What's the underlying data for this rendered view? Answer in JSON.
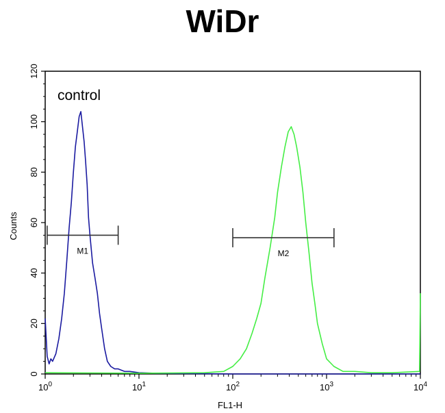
{
  "chart_data": {
    "type": "line",
    "title": "WiDr",
    "xlabel": "FL1-H",
    "ylabel": "Counts",
    "x_scale": "log",
    "xlim": [
      1,
      10000
    ],
    "ylim": [
      0,
      120
    ],
    "x_ticks": [
      {
        "value": 1,
        "base": "10",
        "exp": "0"
      },
      {
        "value": 10,
        "base": "10",
        "exp": "1"
      },
      {
        "value": 100,
        "base": "10",
        "exp": "2"
      },
      {
        "value": 1000,
        "base": "10",
        "exp": "3"
      },
      {
        "value": 10000,
        "base": "10",
        "exp": "4"
      }
    ],
    "y_ticks": [
      "0",
      "20",
      "40",
      "60",
      "80",
      "100",
      "120"
    ],
    "annotation": "control",
    "markers": [
      {
        "label": "M1",
        "x_start": 1.05,
        "x_end": 6.0,
        "y": 55
      },
      {
        "label": "M2",
        "x_start": 100,
        "x_end": 1200,
        "y": 54
      }
    ],
    "series": [
      {
        "color": "#1a1aa0",
        "x": [
          1.0,
          1.05,
          1.1,
          1.15,
          1.2,
          1.3,
          1.4,
          1.5,
          1.6,
          1.7,
          1.8,
          1.9,
          2.0,
          2.1,
          2.2,
          2.3,
          2.4,
          2.5,
          2.6,
          2.7,
          2.8,
          2.9,
          3.0,
          3.2,
          3.4,
          3.6,
          3.8,
          4.0,
          4.3,
          4.6,
          5.0,
          5.5,
          6.0,
          7.0,
          8.0,
          10.0,
          15.0,
          30.0,
          100.0,
          1000.0,
          10000.0
        ],
        "y": [
          22,
          7,
          4,
          6,
          5,
          8,
          14,
          22,
          32,
          45,
          58,
          68,
          80,
          90,
          96,
          102,
          104,
          98,
          92,
          84,
          75,
          62,
          55,
          44,
          38,
          32,
          24,
          18,
          10,
          5,
          3,
          2,
          2,
          1,
          1,
          0.5,
          0.3,
          0.2,
          0,
          0,
          0
        ]
      },
      {
        "color": "#44ee44",
        "x": [
          1.0,
          10.0,
          50.0,
          80.0,
          100.0,
          120.0,
          140.0,
          160.0,
          180.0,
          200.0,
          220.0,
          250.0,
          280.0,
          300.0,
          330.0,
          360.0,
          390.0,
          420.0,
          450.0,
          480.0,
          520.0,
          560.0,
          600.0,
          650.0,
          700.0,
          750.0,
          800.0,
          900.0,
          1000.0,
          1200.0,
          1500.0,
          2000.0,
          3000.0,
          5000.0,
          9800.0,
          10000.0
        ],
        "y": [
          0.5,
          0.3,
          0.5,
          1,
          3,
          6,
          10,
          16,
          22,
          28,
          38,
          50,
          62,
          72,
          82,
          90,
          96,
          98,
          95,
          90,
          82,
          72,
          60,
          48,
          36,
          28,
          20,
          12,
          6,
          3,
          1,
          1,
          0.5,
          0.5,
          1,
          32
        ]
      }
    ]
  }
}
